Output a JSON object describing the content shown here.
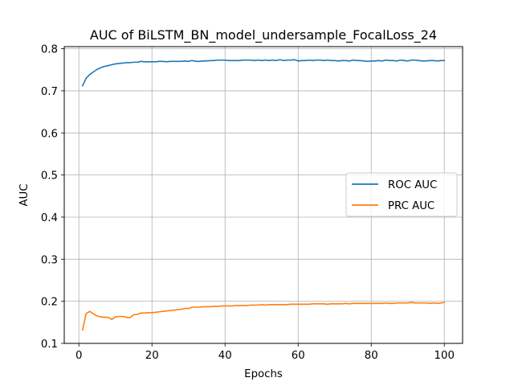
{
  "chart_data": {
    "type": "line",
    "title": "AUC of BiLSTM_BN_model_undersample_FocalLoss_24",
    "xlabel": "Epochs",
    "ylabel": "AUC",
    "xlim": [
      -4.0,
      105.0
    ],
    "ylim": [
      0.1,
      0.805
    ],
    "xticks": [
      0,
      20,
      40,
      60,
      80,
      100
    ],
    "yticks": [
      0.1,
      0.2,
      0.3,
      0.4,
      0.5,
      0.6,
      0.7,
      0.8
    ],
    "xtick_labels": [
      "0",
      "20",
      "40",
      "60",
      "80",
      "100"
    ],
    "ytick_labels": [
      "0.1",
      "0.2",
      "0.3",
      "0.4",
      "0.5",
      "0.6",
      "0.7",
      "0.8"
    ],
    "grid": true,
    "legend_position": "center-right",
    "x": [
      1,
      2,
      3,
      4,
      5,
      6,
      7,
      8,
      9,
      10,
      11,
      12,
      13,
      14,
      15,
      16,
      17,
      18,
      19,
      20,
      21,
      22,
      23,
      24,
      25,
      26,
      27,
      28,
      29,
      30,
      31,
      32,
      33,
      34,
      35,
      36,
      37,
      38,
      39,
      40,
      41,
      42,
      43,
      44,
      45,
      46,
      47,
      48,
      49,
      50,
      51,
      52,
      53,
      54,
      55,
      56,
      57,
      58,
      59,
      60,
      61,
      62,
      63,
      64,
      65,
      66,
      67,
      68,
      69,
      70,
      71,
      72,
      73,
      74,
      75,
      76,
      77,
      78,
      79,
      80,
      81,
      82,
      83,
      84,
      85,
      86,
      87,
      88,
      89,
      90,
      91,
      92,
      93,
      94,
      95,
      96,
      97,
      98,
      99,
      100
    ],
    "series": [
      {
        "name": "ROC AUC",
        "color": "#1f77b4",
        "values": [
          0.712,
          0.73,
          0.739,
          0.745,
          0.751,
          0.755,
          0.758,
          0.76,
          0.762,
          0.764,
          0.765,
          0.766,
          0.767,
          0.767,
          0.768,
          0.768,
          0.77,
          0.769,
          0.769,
          0.769,
          0.769,
          0.77,
          0.77,
          0.769,
          0.77,
          0.77,
          0.77,
          0.77,
          0.771,
          0.77,
          0.772,
          0.77,
          0.77,
          0.771,
          0.771,
          0.772,
          0.772,
          0.773,
          0.773,
          0.773,
          0.772,
          0.772,
          0.772,
          0.772,
          0.773,
          0.773,
          0.773,
          0.772,
          0.773,
          0.772,
          0.773,
          0.772,
          0.773,
          0.772,
          0.774,
          0.772,
          0.773,
          0.773,
          0.774,
          0.771,
          0.772,
          0.772,
          0.773,
          0.772,
          0.773,
          0.773,
          0.772,
          0.773,
          0.772,
          0.772,
          0.771,
          0.772,
          0.772,
          0.771,
          0.773,
          0.772,
          0.772,
          0.771,
          0.77,
          0.771,
          0.771,
          0.772,
          0.771,
          0.773,
          0.772,
          0.772,
          0.771,
          0.773,
          0.772,
          0.771,
          0.773,
          0.773,
          0.772,
          0.771,
          0.771,
          0.772,
          0.772,
          0.771,
          0.772,
          0.772
        ]
      },
      {
        "name": "PRC AUC",
        "color": "#ff7f0e",
        "values": [
          0.132,
          0.171,
          0.176,
          0.17,
          0.165,
          0.163,
          0.162,
          0.162,
          0.157,
          0.163,
          0.164,
          0.164,
          0.162,
          0.161,
          0.168,
          0.169,
          0.172,
          0.172,
          0.173,
          0.173,
          0.174,
          0.175,
          0.176,
          0.177,
          0.178,
          0.179,
          0.18,
          0.181,
          0.183,
          0.183,
          0.186,
          0.186,
          0.186,
          0.187,
          0.187,
          0.187,
          0.188,
          0.188,
          0.189,
          0.189,
          0.189,
          0.189,
          0.19,
          0.19,
          0.19,
          0.19,
          0.191,
          0.191,
          0.191,
          0.192,
          0.191,
          0.192,
          0.192,
          0.192,
          0.192,
          0.192,
          0.192,
          0.193,
          0.193,
          0.193,
          0.193,
          0.193,
          0.193,
          0.194,
          0.194,
          0.194,
          0.194,
          0.193,
          0.194,
          0.194,
          0.194,
          0.194,
          0.195,
          0.194,
          0.195,
          0.195,
          0.195,
          0.195,
          0.195,
          0.195,
          0.195,
          0.195,
          0.195,
          0.196,
          0.195,
          0.195,
          0.196,
          0.196,
          0.196,
          0.196,
          0.197,
          0.196,
          0.196,
          0.196,
          0.196,
          0.195,
          0.196,
          0.195,
          0.196,
          0.197
        ]
      }
    ]
  }
}
